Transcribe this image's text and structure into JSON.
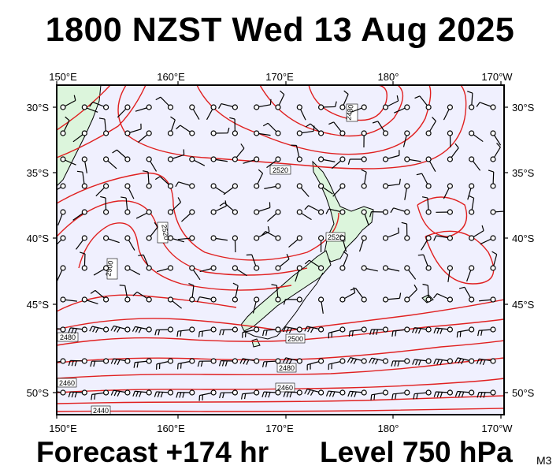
{
  "title": "1800 NZST Wed 13 Aug 2025",
  "forecast_label": "Forecast +174 hr",
  "level_label": "Level 750 hPa",
  "model_badge": "M3",
  "map": {
    "lon_ticks": [
      "150°E",
      "160°E",
      "170°E",
      "180°",
      "170°W"
    ],
    "lat_ticks": [
      "30°S",
      "35°S",
      "40°S",
      "45°S",
      "50°S"
    ],
    "contour_labels": [
      "2480",
      "2520",
      "2520",
      "2500",
      "2520",
      "2480",
      "2500",
      "2460",
      "2440",
      "2460",
      "2480"
    ]
  },
  "colors": {
    "ocean": "#f0f0fe",
    "land": "#dcf5dc",
    "contour": "#e02020",
    "wind": "#000000"
  }
}
